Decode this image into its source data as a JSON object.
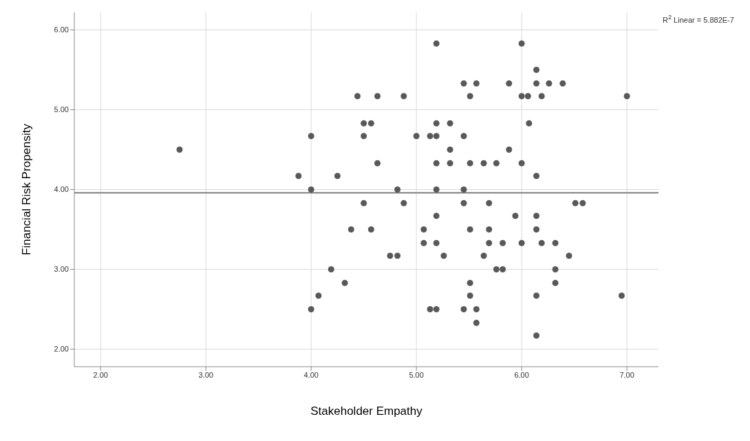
{
  "chart_data": {
    "type": "scatter",
    "xlabel": "Stakeholder Empathy",
    "ylabel": "Financial Risk Propensity",
    "annotations": [
      "R$^{2}$ Linear = 5.882E-7"
    ],
    "series": [
      {
        "color": "#595959",
        "marker": "circle",
        "x": [
          2.75,
          3.88,
          4.0,
          4.0,
          4.0,
          4.07,
          4.19,
          4.25,
          4.32,
          4.38,
          4.44,
          4.5,
          4.57,
          4.5,
          4.5,
          4.57,
          4.63,
          4.63,
          4.75,
          4.82,
          4.82,
          4.88,
          4.88,
          5.0,
          5.07,
          5.07,
          5.13,
          5.19,
          5.19,
          5.19,
          5.19,
          5.19,
          5.19,
          5.19,
          5.13,
          5.19,
          5.32,
          5.32,
          5.32,
          5.26,
          5.45,
          5.45,
          5.45,
          5.45,
          5.45,
          5.51,
          5.57,
          5.51,
          5.64,
          5.76,
          5.88,
          5.88,
          6.0,
          6.0,
          6.06,
          6.19,
          6.14,
          6.14,
          6.26,
          6.39,
          6.07,
          6.0,
          6.14,
          7.0,
          5.69,
          6.51,
          6.58,
          5.94,
          6.14,
          5.51,
          5.69,
          6.14,
          5.69,
          5.82,
          6.0,
          6.19,
          6.32,
          5.64,
          6.45,
          5.76,
          5.82,
          6.32,
          5.51,
          6.32,
          5.51,
          6.14,
          6.95,
          5.57,
          5.57,
          6.14
        ],
        "values": [
          4.5,
          4.17,
          4.67,
          4.0,
          2.5,
          2.67,
          3.0,
          4.17,
          2.83,
          3.5,
          5.17,
          4.83,
          4.83,
          4.67,
          3.83,
          3.5,
          5.17,
          4.33,
          3.17,
          3.17,
          4.0,
          3.83,
          5.17,
          4.67,
          3.5,
          3.33,
          4.67,
          4.67,
          4.83,
          5.83,
          4.33,
          4.0,
          3.67,
          3.33,
          2.5,
          2.5,
          4.83,
          4.5,
          4.33,
          3.17,
          5.33,
          4.67,
          4.0,
          3.83,
          2.5,
          5.17,
          5.33,
          4.33,
          4.33,
          4.33,
          5.33,
          4.5,
          5.83,
          5.17,
          5.17,
          5.17,
          5.5,
          5.33,
          5.33,
          5.33,
          4.83,
          4.33,
          4.17,
          5.17,
          3.83,
          3.83,
          3.83,
          3.67,
          3.67,
          3.5,
          3.5,
          3.5,
          3.33,
          3.33,
          3.33,
          3.33,
          3.33,
          3.17,
          3.17,
          3.0,
          3.0,
          3.0,
          2.83,
          2.83,
          2.67,
          2.67,
          2.67,
          2.5,
          2.33,
          2.17
        ]
      },
      {
        "type": "line",
        "color": "#7f7f7f",
        "marker": "none",
        "x": [
          1.75,
          7.3
        ],
        "values": [
          3.96,
          3.96
        ]
      }
    ],
    "xlim": [
      1.75,
      7.3
    ],
    "ylim": [
      1.78,
      6.22
    ],
    "xticks": [
      {
        "value": 2,
        "label": "2.00"
      },
      {
        "value": 3,
        "label": "3.00"
      },
      {
        "value": 4,
        "label": "4.00"
      },
      {
        "value": 5,
        "label": "5.00"
      },
      {
        "value": 6,
        "label": "6.00"
      },
      {
        "value": 7,
        "label": "7.00"
      }
    ],
    "yticks": [
      {
        "value": 2,
        "label": "2.00"
      },
      {
        "value": 3,
        "label": "3.00"
      },
      {
        "value": 4,
        "label": "4.00"
      },
      {
        "value": 5,
        "label": "5.00"
      },
      {
        "value": 6,
        "label": "6.00"
      }
    ],
    "grid": true,
    "legend": false
  }
}
